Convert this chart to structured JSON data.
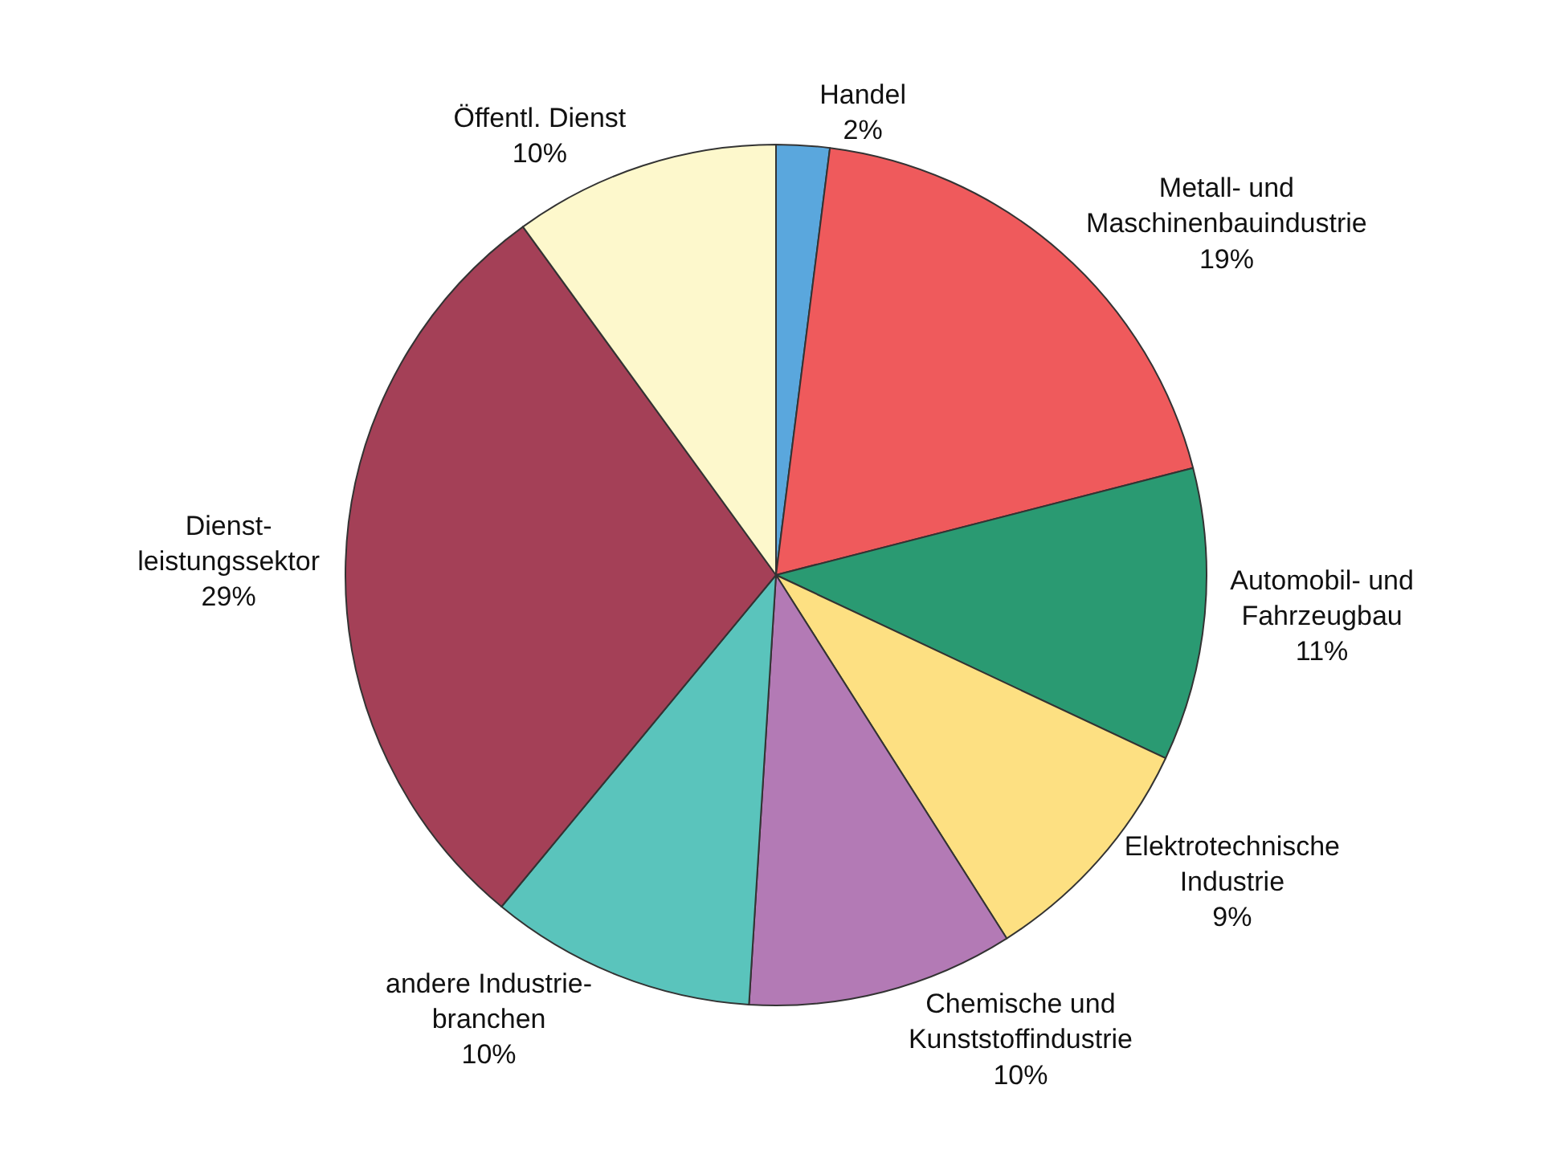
{
  "chart_data": {
    "type": "pie",
    "categories": [
      "Handel",
      "Metall- und\nMaschinenbauindustrie",
      "Automobil- und\nFahrzeugbau",
      "Elektrotechnische\nIndustrie",
      "Chemische und\nKunststoffindustrie",
      "andere Industrie-\nbranchen",
      "Dienst-\nleistungssektor",
      "Öffentl. Dienst"
    ],
    "values": [
      2,
      19,
      11,
      9,
      10,
      10,
      29,
      10
    ],
    "value_labels": [
      "2%",
      "19%",
      "11%",
      "9%",
      "10%",
      "10%",
      "29%",
      "10%"
    ],
    "colors": [
      "#5aa7dd",
      "#ef5a5c",
      "#2a9a72",
      "#fde082",
      "#b37ab5",
      "#5ac4bc",
      "#a44057",
      "#fdf8cc"
    ],
    "legend": false
  }
}
